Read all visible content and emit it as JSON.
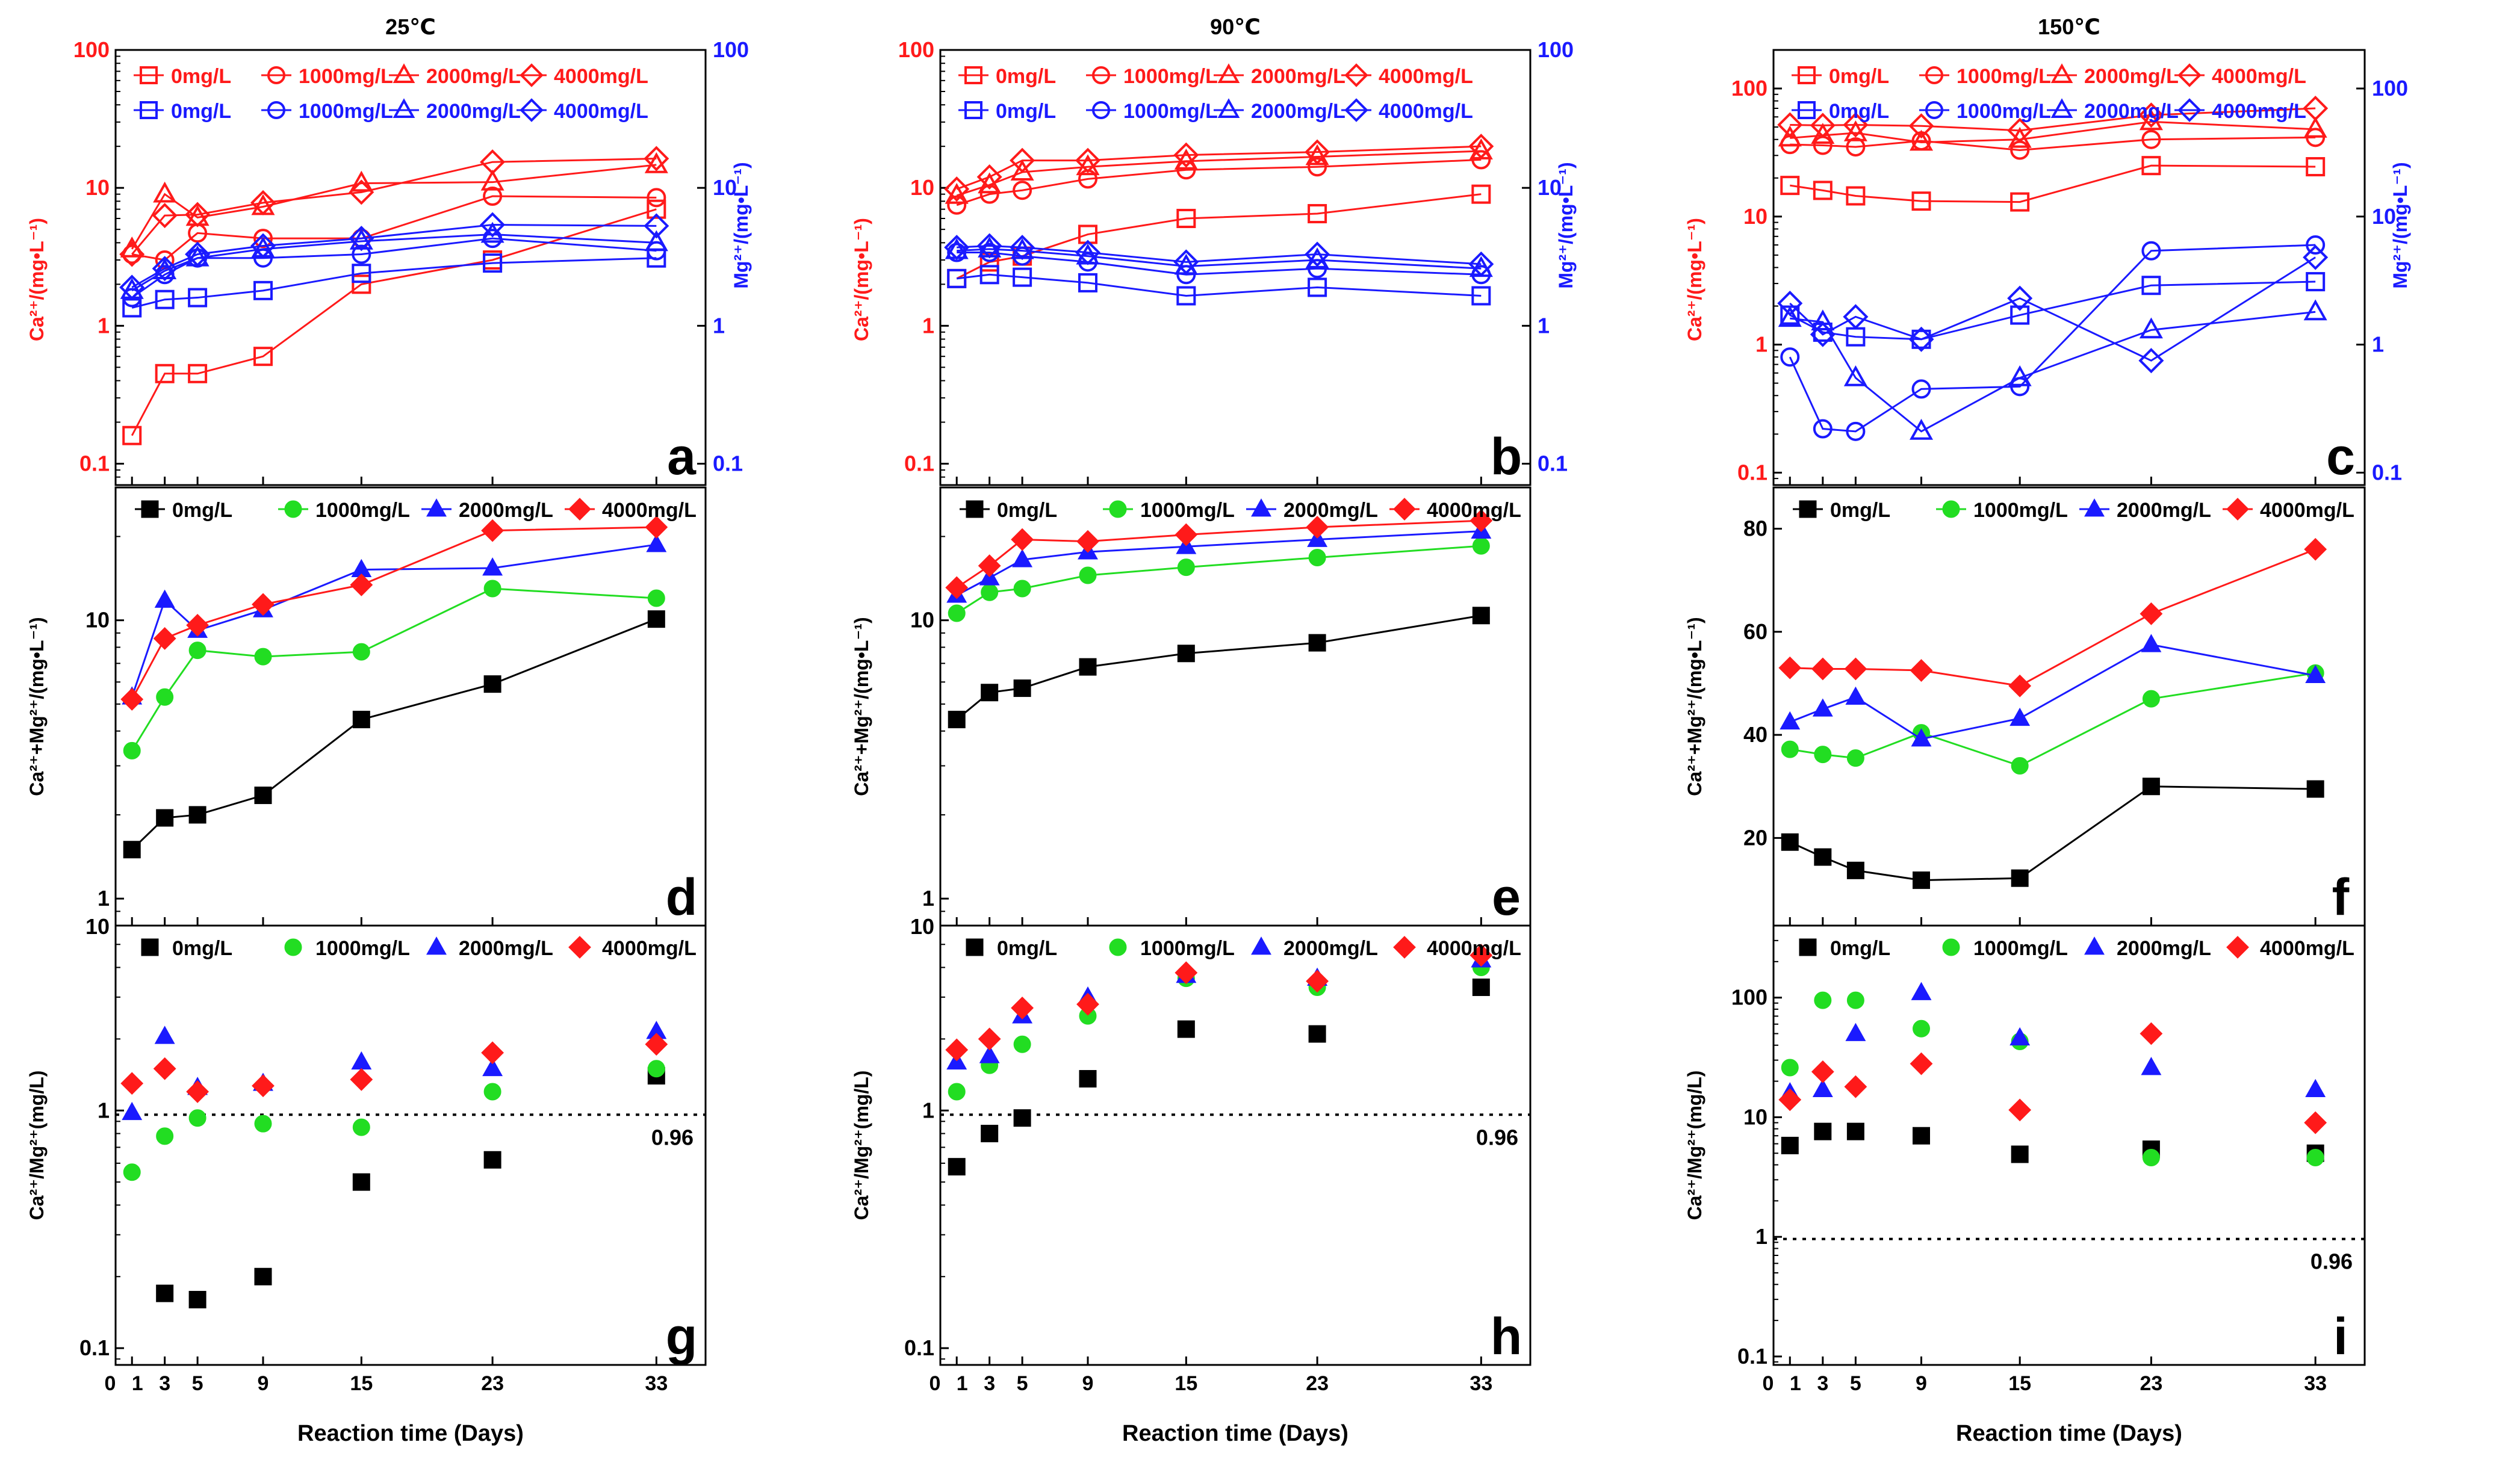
{
  "figure": {
    "xlabel": "Reaction time (Days)",
    "reference_label": "0.96",
    "reference_value": 0.96,
    "colors": {
      "ca": "#ff1a1a",
      "mg": "#1a1aff",
      "s0": "#000000",
      "s1": "#22dd22",
      "s2": "#1a1aff",
      "s3": "#ff1a1a",
      "dotted": "#000000"
    },
    "series_names": [
      "0mg/L",
      "1000mg/L",
      "2000mg/L",
      "4000mg/L"
    ],
    "x_days": [
      1,
      3,
      5,
      9,
      15,
      23,
      33
    ],
    "xticks": [
      0,
      1,
      3,
      5,
      9,
      15,
      23,
      33
    ],
    "xlim": [
      0,
      36
    ]
  },
  "chart_data": [
    {
      "id": "a",
      "type": "line",
      "panel_label": "a",
      "title": "25℃",
      "ylabel": "Ca²⁺/(mg•L⁻¹)",
      "ylabel2": "Mg²⁺/(mg•L⁻¹)",
      "yscale": "log",
      "ylim": [
        0.07,
        100
      ],
      "y2lim": [
        0.07,
        100
      ],
      "yticks": [
        "0.1",
        "1",
        "10",
        "100"
      ],
      "y2ticks": [
        "0.1",
        "1",
        "10",
        "100"
      ],
      "x": [
        1,
        3,
        5,
        9,
        15,
        23,
        33
      ],
      "series_ca": [
        {
          "name": "0mg/L",
          "marker": "square",
          "values": [
            0.16,
            0.45,
            0.45,
            0.6,
            2.0,
            3.0,
            7.0
          ]
        },
        {
          "name": "1000mg/L",
          "marker": "circle",
          "values": [
            3.3,
            3.0,
            4.7,
            4.3,
            4.3,
            8.7,
            8.5
          ]
        },
        {
          "name": "2000mg/L",
          "marker": "triangle",
          "values": [
            3.6,
            9.0,
            6.1,
            7.3,
            10.8,
            11.0,
            14.7
          ]
        },
        {
          "name": "4000mg/L",
          "marker": "diamond",
          "values": [
            3.3,
            6.3,
            6.4,
            7.8,
            9.3,
            15.4,
            16.3
          ]
        }
      ],
      "series_mg": [
        {
          "name": "0mg/L",
          "marker": "square",
          "values": [
            1.35,
            1.55,
            1.6,
            1.8,
            2.4,
            2.85,
            3.1
          ]
        },
        {
          "name": "1000mg/L",
          "marker": "circle",
          "values": [
            1.6,
            2.35,
            3.1,
            3.1,
            3.3,
            4.3,
            3.5
          ]
        },
        {
          "name": "2000mg/L",
          "marker": "triangle",
          "values": [
            1.8,
            2.5,
            3.1,
            3.6,
            4.1,
            4.6,
            4.0
          ]
        },
        {
          "name": "4000mg/L",
          "marker": "diamond",
          "values": [
            1.9,
            2.6,
            3.3,
            3.8,
            4.3,
            5.4,
            5.3
          ]
        }
      ]
    },
    {
      "id": "b",
      "type": "line",
      "panel_label": "b",
      "title": "90℃",
      "ylabel": "Ca²⁺/(mg•L⁻¹)",
      "ylabel2": "Mg²⁺/(mg•L⁻¹)",
      "yscale": "log",
      "ylim": [
        0.07,
        100
      ],
      "y2lim": [
        0.07,
        100
      ],
      "yticks": [
        "0.1",
        "1",
        "10",
        "100"
      ],
      "y2ticks": [
        "0.1",
        "1",
        "10",
        "100"
      ],
      "x": [
        1,
        3,
        5,
        9,
        15,
        23,
        33
      ],
      "series_ca": [
        {
          "name": "0mg/L",
          "marker": "square",
          "values": [
            2.2,
            2.9,
            3.2,
            4.6,
            6.0,
            6.5,
            9.0
          ]
        },
        {
          "name": "1000mg/L",
          "marker": "circle",
          "values": [
            7.5,
            9.0,
            9.6,
            11.6,
            13.5,
            14.2,
            16.0
          ]
        },
        {
          "name": "2000mg/L",
          "marker": "triangle",
          "values": [
            8.8,
            10.5,
            13.0,
            14.2,
            15.6,
            16.8,
            18.5
          ]
        },
        {
          "name": "4000mg/L",
          "marker": "diamond",
          "values": [
            9.8,
            12.0,
            15.8,
            15.8,
            17.3,
            18.2,
            20.0
          ]
        }
      ],
      "series_mg": [
        {
          "name": "0mg/L",
          "marker": "square",
          "values": [
            2.2,
            2.35,
            2.25,
            2.05,
            1.65,
            1.9,
            1.65
          ]
        },
        {
          "name": "1000mg/L",
          "marker": "circle",
          "values": [
            3.4,
            3.4,
            3.2,
            2.9,
            2.35,
            2.6,
            2.35
          ]
        },
        {
          "name": "2000mg/L",
          "marker": "triangle",
          "values": [
            3.5,
            3.6,
            3.5,
            3.2,
            2.7,
            3.0,
            2.6
          ]
        },
        {
          "name": "4000mg/L",
          "marker": "diamond",
          "values": [
            3.7,
            3.8,
            3.7,
            3.4,
            2.9,
            3.3,
            2.8
          ]
        }
      ]
    },
    {
      "id": "c",
      "type": "line",
      "panel_label": "c",
      "title": "150℃",
      "ylabel": "Ca²⁺/(mg•L⁻¹)",
      "ylabel2": "Mg²⁺/(mg•L⁻¹)",
      "yscale": "log",
      "ylim": [
        0.08,
        200
      ],
      "y2lim": [
        0.08,
        200
      ],
      "yticks": [
        "0.1",
        "1",
        "10",
        "100"
      ],
      "y2ticks": [
        "0.1",
        "1",
        "10",
        "100"
      ],
      "x": [
        1,
        3,
        5,
        9,
        15,
        23,
        33
      ],
      "series_ca": [
        {
          "name": "0mg/L",
          "marker": "square",
          "values": [
            17.5,
            16.0,
            14.5,
            13.2,
            13.0,
            25.0,
            24.5
          ]
        },
        {
          "name": "1000mg/L",
          "marker": "circle",
          "values": [
            36.5,
            36.0,
            35.0,
            39.0,
            33.0,
            40.0,
            41.5
          ]
        },
        {
          "name": "2000mg/L",
          "marker": "triangle",
          "values": [
            41.0,
            43.0,
            45.0,
            38.0,
            40.0,
            55.0,
            48.0
          ]
        },
        {
          "name": "4000mg/L",
          "marker": "diamond",
          "values": [
            52.0,
            51.5,
            52.0,
            51.0,
            47.0,
            62.0,
            70.0
          ]
        }
      ],
      "series_mg": [
        {
          "name": "0mg/L",
          "marker": "square",
          "values": [
            1.7,
            1.25,
            1.15,
            1.1,
            1.7,
            2.9,
            3.1
          ]
        },
        {
          "name": "1000mg/L",
          "marker": "circle",
          "values": [
            0.8,
            0.22,
            0.21,
            0.45,
            0.47,
            5.4,
            6.0
          ]
        },
        {
          "name": "2000mg/L",
          "marker": "triangle",
          "values": [
            1.6,
            1.5,
            0.55,
            0.21,
            0.55,
            1.3,
            1.8
          ]
        },
        {
          "name": "4000mg/L",
          "marker": "diamond",
          "values": [
            2.1,
            1.2,
            1.65,
            1.1,
            2.3,
            0.75,
            4.8
          ]
        }
      ]
    },
    {
      "id": "d",
      "type": "line",
      "panel_label": "d",
      "ylabel": "Ca²⁺+Mg²⁺/(mg•L⁻¹)",
      "yscale": "log",
      "ylim": [
        0.8,
        30
      ],
      "yticks": [
        "1",
        "10"
      ],
      "bottom_tick": "10",
      "x": [
        1,
        3,
        5,
        9,
        15,
        23,
        33
      ],
      "series": [
        {
          "name": "0mg/L",
          "marker": "square",
          "values": [
            1.5,
            1.95,
            2.0,
            2.35,
            4.4,
            5.9,
            10.1
          ]
        },
        {
          "name": "1000mg/L",
          "marker": "circle",
          "values": [
            3.4,
            5.3,
            7.8,
            7.4,
            7.7,
            13.0,
            12.0
          ]
        },
        {
          "name": "2000mg/L",
          "marker": "triangle",
          "values": [
            5.3,
            11.8,
            9.2,
            10.9,
            15.2,
            15.4,
            18.7
          ]
        },
        {
          "name": "4000mg/L",
          "marker": "diamond",
          "values": [
            5.2,
            8.6,
            9.6,
            11.4,
            13.4,
            21.0,
            21.6
          ]
        }
      ]
    },
    {
      "id": "e",
      "type": "line",
      "panel_label": "e",
      "ylabel": "Ca²⁺+Mg²⁺/(mg•L⁻¹)",
      "yscale": "log",
      "ylim": [
        0.8,
        30
      ],
      "yticks": [
        "1",
        "10"
      ],
      "bottom_tick": "10",
      "x": [
        1,
        3,
        5,
        9,
        15,
        23,
        33
      ],
      "series": [
        {
          "name": "0mg/L",
          "marker": "square",
          "values": [
            4.4,
            5.5,
            5.7,
            6.8,
            7.6,
            8.3,
            10.4
          ]
        },
        {
          "name": "1000mg/L",
          "marker": "circle",
          "values": [
            10.6,
            12.6,
            13.0,
            14.5,
            15.5,
            16.8,
            18.5
          ]
        },
        {
          "name": "2000mg/L",
          "marker": "triangle",
          "values": [
            12.3,
            14.2,
            16.5,
            17.6,
            18.4,
            19.5,
            20.9
          ]
        },
        {
          "name": "4000mg/L",
          "marker": "diamond",
          "values": [
            13.1,
            15.7,
            19.5,
            19.2,
            20.3,
            21.6,
            22.8
          ]
        }
      ]
    },
    {
      "id": "f",
      "type": "line",
      "panel_label": "f",
      "ylabel": "Ca²⁺+Mg²⁺/(mg•L⁻¹)",
      "yscale": "linear",
      "ylim": [
        3,
        88
      ],
      "yticks": [
        "20",
        "40",
        "60",
        "80"
      ],
      "x": [
        1,
        3,
        5,
        9,
        15,
        23,
        33
      ],
      "series": [
        {
          "name": "0mg/L",
          "marker": "square",
          "values": [
            19.2,
            16.3,
            13.7,
            11.8,
            12.2,
            30.0,
            29.5
          ]
        },
        {
          "name": "1000mg/L",
          "marker": "circle",
          "values": [
            37.2,
            36.2,
            35.5,
            40.4,
            34.0,
            47.0,
            52.0
          ]
        },
        {
          "name": "2000mg/L",
          "marker": "triangle",
          "values": [
            42.5,
            45.0,
            47.3,
            39.2,
            43.2,
            57.5,
            51.5
          ]
        },
        {
          "name": "4000mg/L",
          "marker": "diamond",
          "values": [
            53.0,
            52.8,
            52.8,
            52.5,
            49.5,
            63.5,
            76.0
          ]
        }
      ]
    },
    {
      "id": "g",
      "type": "scatter",
      "panel_label": "g",
      "ylabel": "Ca²⁺/Mg²⁺(mg/L)",
      "yscale": "log",
      "ylim": [
        0.085,
        6
      ],
      "yticks": [
        "0.1",
        "1"
      ],
      "x": [
        1,
        3,
        5,
        9,
        15,
        23,
        33
      ],
      "series": [
        {
          "name": "0mg/L",
          "marker": "square",
          "values": [
            null,
            0.17,
            0.16,
            0.2,
            0.5,
            0.62,
            1.4
          ]
        },
        {
          "name": "1000mg/L",
          "marker": "circle",
          "values": [
            0.55,
            0.78,
            0.93,
            0.88,
            0.85,
            1.2,
            1.5
          ]
        },
        {
          "name": "2000mg/L",
          "marker": "triangle",
          "values": [
            0.98,
            2.05,
            1.25,
            1.3,
            1.6,
            1.5,
            2.15
          ]
        },
        {
          "name": "4000mg/L",
          "marker": "diamond",
          "values": [
            1.3,
            1.5,
            1.2,
            1.27,
            1.35,
            1.75,
            1.9
          ]
        }
      ]
    },
    {
      "id": "h",
      "type": "scatter",
      "panel_label": "h",
      "ylabel": "Ca²⁺/Mg²⁺(mg/L)",
      "yscale": "log",
      "ylim": [
        0.085,
        6
      ],
      "yticks": [
        "0.1",
        "1"
      ],
      "x": [
        1,
        3,
        5,
        9,
        15,
        23,
        33
      ],
      "series": [
        {
          "name": "0mg/L",
          "marker": "square",
          "values": [
            0.58,
            0.8,
            0.93,
            1.36,
            2.2,
            2.1,
            3.3
          ]
        },
        {
          "name": "1000mg/L",
          "marker": "circle",
          "values": [
            1.2,
            1.55,
            1.9,
            2.5,
            3.6,
            3.3,
            4.0
          ]
        },
        {
          "name": "2000mg/L",
          "marker": "triangle",
          "values": [
            1.6,
            1.7,
            2.5,
            3.0,
            3.7,
            3.6,
            4.3
          ]
        },
        {
          "name": "4000mg/L",
          "marker": "diamond",
          "values": [
            1.8,
            2.0,
            2.7,
            2.8,
            3.8,
            3.5,
            4.5
          ]
        }
      ]
    },
    {
      "id": "i",
      "type": "scatter",
      "panel_label": "i",
      "ylabel": "Ca²⁺/Mg²⁺(mg/L)",
      "yscale": "log",
      "ylim": [
        0.085,
        400
      ],
      "yticks": [
        "0.1",
        "1",
        "10",
        "100"
      ],
      "x": [
        1,
        3,
        5,
        9,
        15,
        23,
        33
      ],
      "series": [
        {
          "name": "0mg/L",
          "marker": "square",
          "values": [
            5.8,
            7.6,
            7.6,
            7.0,
            4.9,
            5.4,
            5.0
          ]
        },
        {
          "name": "1000mg/L",
          "marker": "circle",
          "values": [
            26.0,
            95.0,
            95.0,
            55.0,
            43.0,
            4.6,
            4.6
          ]
        },
        {
          "name": "2000mg/L",
          "marker": "triangle",
          "values": [
            16.0,
            17.0,
            50.0,
            110.0,
            46.0,
            26.0,
            17.0
          ]
        },
        {
          "name": "4000mg/L",
          "marker": "diamond",
          "values": [
            14.0,
            24.0,
            18.0,
            28.0,
            11.5,
            50.0,
            9.0
          ]
        }
      ]
    }
  ]
}
